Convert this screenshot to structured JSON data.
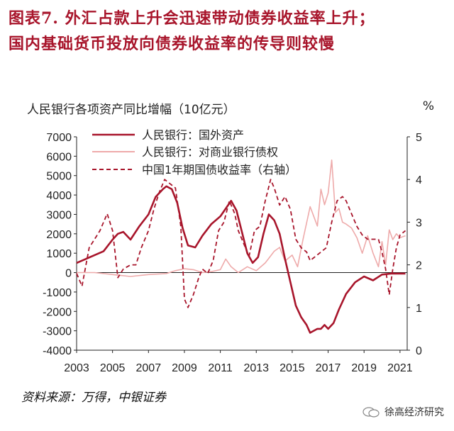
{
  "title": {
    "line1": "图表7.  外汇占款上升会迅速带动债券收益率上升；",
    "line2": "国内基础货币投放向债券收益率的传导则较慢"
  },
  "units": {
    "left": "人民银行各项资产同比增幅（10亿元）",
    "right": "%"
  },
  "source": "资料来源：万得，中银证券",
  "watermark": "徐高经济研究",
  "colors": {
    "dark_red": "#a8152b",
    "pink": "#eeaaaa",
    "axis": "#222222"
  },
  "chart_data": {
    "type": "line",
    "xlabel": "",
    "ylabel": "人民银行各项资产同比增幅（10亿元）",
    "y2label": "%",
    "xlim": [
      2003,
      2021.4
    ],
    "xticks": [
      "2003",
      "2005",
      "2007",
      "2009",
      "2011",
      "2013",
      "2015",
      "2017",
      "2019",
      "2021"
    ],
    "ylim": [
      -4000,
      7000
    ],
    "yticks": [
      "7000",
      "6000",
      "5000",
      "4000",
      "3000",
      "2000",
      "1000",
      "0",
      "-1000",
      "-2000",
      "-3000",
      "-4000"
    ],
    "y2lim": [
      0,
      5
    ],
    "y2ticks": [
      "5",
      "4",
      "3",
      "2",
      "1",
      "0"
    ],
    "legend_position": "top-left",
    "series": [
      {
        "name": "人民银行：国外资产",
        "axis": "left",
        "style": "solid-thick",
        "color": "#a8152b",
        "x": [
          2003.0,
          2003.5,
          2004.0,
          2004.5,
          2005.0,
          2005.3,
          2005.6,
          2006.0,
          2006.5,
          2007.0,
          2007.4,
          2007.8,
          2008.0,
          2008.3,
          2008.6,
          2008.9,
          2009.2,
          2009.6,
          2010.0,
          2010.5,
          2011.0,
          2011.3,
          2011.6,
          2011.9,
          2012.2,
          2012.5,
          2012.8,
          2013.1,
          2013.4,
          2013.7,
          2014.0,
          2014.3,
          2014.6,
          2014.9,
          2015.2,
          2015.5,
          2015.8,
          2016.0,
          2016.2,
          2016.4,
          2016.6,
          2016.8,
          2017.0,
          2017.3,
          2017.6,
          2018.0,
          2018.5,
          2019.0,
          2019.5,
          2020.0,
          2020.5,
          2021.0,
          2021.3
        ],
        "y": [
          500,
          700,
          900,
          1100,
          1700,
          2000,
          2100,
          1700,
          2400,
          3000,
          3900,
          4300,
          4450,
          4300,
          3600,
          2300,
          1400,
          1300,
          1900,
          2500,
          2900,
          3300,
          3700,
          3200,
          2100,
          1000,
          500,
          800,
          2000,
          3000,
          2700,
          2000,
          700,
          -500,
          -1700,
          -2300,
          -2700,
          -3100,
          -3000,
          -2900,
          -2900,
          -2700,
          -2900,
          -2600,
          -1900,
          -1100,
          -500,
          -200,
          -400,
          -100,
          -50,
          -50,
          -50
        ]
      },
      {
        "name": "人民银行：对商业银行债权",
        "axis": "left",
        "style": "solid-thin",
        "color": "#eeaaaa",
        "x": [
          2003.0,
          2004.0,
          2005.0,
          2006.0,
          2007.0,
          2008.0,
          2008.5,
          2009.0,
          2009.5,
          2010.0,
          2010.5,
          2011.0,
          2011.3,
          2011.6,
          2012.0,
          2012.5,
          2013.0,
          2013.5,
          2014.0,
          2014.3,
          2014.6,
          2015.0,
          2015.3,
          2015.6,
          2016.0,
          2016.2,
          2016.4,
          2016.6,
          2016.8,
          2017.0,
          2017.2,
          2017.4,
          2017.6,
          2017.8,
          2018.0,
          2018.3,
          2018.6,
          2018.9,
          2019.2,
          2019.5,
          2019.8,
          2020.0,
          2020.2,
          2020.4,
          2020.6,
          2020.8,
          2021.0,
          2021.3
        ],
        "y": [
          0,
          0,
          -100,
          -200,
          -100,
          -50,
          100,
          200,
          150,
          0,
          50,
          150,
          700,
          300,
          0,
          300,
          100,
          500,
          1100,
          1300,
          600,
          900,
          300,
          1700,
          3400,
          2900,
          2400,
          4300,
          3500,
          4100,
          5800,
          3100,
          3300,
          2600,
          2500,
          2300,
          1800,
          1000,
          1900,
          1000,
          300,
          1600,
          400,
          2200,
          1700,
          2000,
          1800,
          1900
        ]
      },
      {
        "name": "中国1年期国债收益率（右轴）",
        "axis": "right",
        "style": "dashed",
        "color": "#a8152b",
        "x": [
          2003.0,
          2003.3,
          2003.7,
          2004.0,
          2004.3,
          2004.7,
          2005.0,
          2005.3,
          2005.6,
          2006.0,
          2006.3,
          2006.6,
          2007.0,
          2007.3,
          2007.6,
          2007.9,
          2008.2,
          2008.5,
          2008.8,
          2009.0,
          2009.2,
          2009.5,
          2009.8,
          2010.0,
          2010.3,
          2010.6,
          2010.9,
          2011.2,
          2011.5,
          2011.8,
          2012.0,
          2012.3,
          2012.6,
          2012.9,
          2013.2,
          2013.5,
          2013.8,
          2014.0,
          2014.3,
          2014.6,
          2014.9,
          2015.2,
          2015.5,
          2015.8,
          2016.0,
          2016.3,
          2016.6,
          2016.9,
          2017.2,
          2017.5,
          2017.8,
          2018.0,
          2018.3,
          2018.6,
          2018.9,
          2019.2,
          2019.5,
          2019.8,
          2020.0,
          2020.2,
          2020.4,
          2020.6,
          2020.8,
          2021.0,
          2021.3
        ],
        "y": [
          1.8,
          1.5,
          2.4,
          2.6,
          2.8,
          3.2,
          2.8,
          1.7,
          1.9,
          2.0,
          2.0,
          2.4,
          2.8,
          3.3,
          3.7,
          4.0,
          3.9,
          3.8,
          2.9,
          1.2,
          1.0,
          1.3,
          1.7,
          1.9,
          1.8,
          2.1,
          2.8,
          3.0,
          3.5,
          3.2,
          2.8,
          2.5,
          2.2,
          2.8,
          2.9,
          3.5,
          4.0,
          3.8,
          3.4,
          3.6,
          3.3,
          2.6,
          2.4,
          2.3,
          2.1,
          2.2,
          2.3,
          2.4,
          3.0,
          3.5,
          3.6,
          3.5,
          3.2,
          2.9,
          2.7,
          2.6,
          2.6,
          2.6,
          2.3,
          1.9,
          1.3,
          1.9,
          2.4,
          2.7,
          2.8
        ]
      }
    ]
  }
}
